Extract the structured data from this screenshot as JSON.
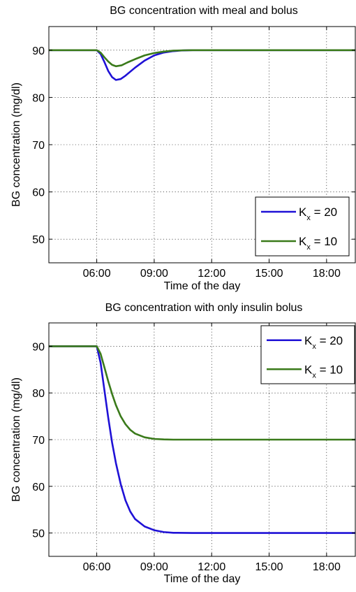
{
  "chart_data": [
    {
      "type": "line",
      "title": "BG concentration with meal and bolus",
      "xlabel": "Time of the day",
      "ylabel": "BG concentration (mg/dl)",
      "xlim": [
        3.5,
        19.5
      ],
      "ylim": [
        45,
        95
      ],
      "xticks": [
        6,
        9,
        12,
        15,
        18
      ],
      "xtick_labels": [
        "06:00",
        "09:00",
        "12:00",
        "15:00",
        "18:00"
      ],
      "yticks": [
        50,
        60,
        70,
        80,
        90
      ],
      "ytick_labels": [
        "50",
        "60",
        "70",
        "80",
        "90"
      ],
      "grid": true,
      "legend_position": "bottom-right",
      "series": [
        {
          "legend_main": "K",
          "legend_sub": "x",
          "legend_value": " = 20",
          "color": "#1f11d6",
          "x": [
            3.5,
            6.0,
            6.2,
            6.4,
            6.6,
            6.8,
            7.0,
            7.25,
            7.5,
            8.0,
            8.5,
            9.0,
            9.5,
            10.0,
            10.5,
            11.0,
            12.0,
            19.5
          ],
          "y": [
            90,
            90,
            89.2,
            87.5,
            85.6,
            84.3,
            83.7,
            83.9,
            84.6,
            86.3,
            87.8,
            88.9,
            89.5,
            89.8,
            89.95,
            90,
            90,
            90
          ]
        },
        {
          "legend_main": "K",
          "legend_sub": "x",
          "legend_value": " = 10",
          "color": "#3a7a1a",
          "x": [
            3.5,
            6.0,
            6.2,
            6.4,
            6.6,
            6.8,
            7.0,
            7.3,
            7.6,
            8.0,
            8.5,
            9.0,
            9.5,
            10.0,
            10.5,
            11.0,
            12.0,
            19.5
          ],
          "y": [
            90,
            90,
            89.5,
            88.5,
            87.6,
            86.9,
            86.6,
            86.8,
            87.4,
            88.1,
            88.9,
            89.4,
            89.7,
            89.9,
            89.97,
            90,
            90,
            90
          ]
        }
      ]
    },
    {
      "type": "line",
      "title": "BG concentration with only insulin bolus",
      "xlabel": "Time of the day",
      "ylabel": "BG concentration (mg/dl)",
      "xlim": [
        3.5,
        19.5
      ],
      "ylim": [
        45,
        95
      ],
      "xticks": [
        6,
        9,
        12,
        15,
        18
      ],
      "xtick_labels": [
        "06:00",
        "09:00",
        "12:00",
        "15:00",
        "18:00"
      ],
      "yticks": [
        50,
        60,
        70,
        80,
        90
      ],
      "ytick_labels": [
        "50",
        "60",
        "70",
        "80",
        "90"
      ],
      "grid": true,
      "legend_position": "top-right",
      "series": [
        {
          "legend_main": "K",
          "legend_sub": "x",
          "legend_value": " = 20",
          "color": "#1f11d6",
          "x": [
            3.5,
            6.0,
            6.2,
            6.4,
            6.6,
            6.8,
            7.0,
            7.25,
            7.5,
            7.75,
            8.0,
            8.5,
            9.0,
            9.5,
            10.0,
            11.0,
            19.5
          ],
          "y": [
            90,
            90,
            86.5,
            80.6,
            74.7,
            69.4,
            65.0,
            60.5,
            57.0,
            54.6,
            53.0,
            51.4,
            50.6,
            50.2,
            50.05,
            50,
            50
          ]
        },
        {
          "legend_main": "K",
          "legend_sub": "x",
          "legend_value": " = 10",
          "color": "#3a7a1a",
          "x": [
            3.5,
            6.0,
            6.2,
            6.4,
            6.6,
            6.8,
            7.0,
            7.25,
            7.5,
            7.75,
            8.0,
            8.5,
            9.0,
            9.5,
            10.0,
            19.5
          ],
          "y": [
            90,
            90,
            88.4,
            85.5,
            82.5,
            79.8,
            77.4,
            75.0,
            73.3,
            72.1,
            71.3,
            70.5,
            70.15,
            70.05,
            70,
            70
          ]
        }
      ]
    }
  ]
}
